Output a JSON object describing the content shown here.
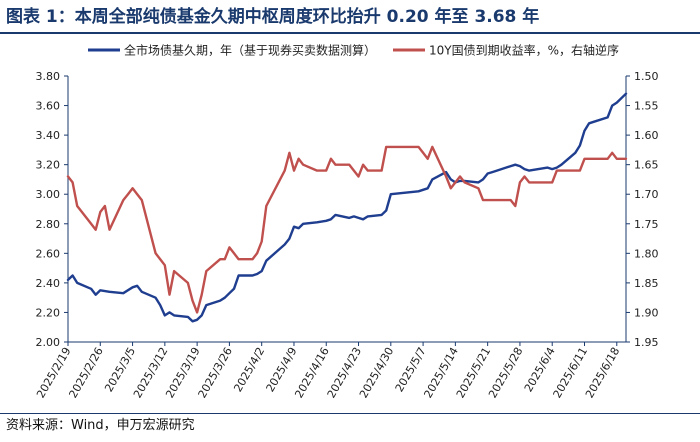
{
  "title": "图表 1：本周全部纯债基金久期中枢周度环比抬升 0.20 年至 3.68 年",
  "source": "资料来源：Wind，申万宏源研究",
  "colors": {
    "series1": "#1f3e8f",
    "series2": "#c0504d",
    "axis": "#1a3a6e"
  },
  "chart_data": {
    "type": "line",
    "legend_position": "top",
    "grid": false,
    "x_ticks": [
      "2025/2/19",
      "2025/2/26",
      "2025/3/5",
      "2025/3/12",
      "2025/3/19",
      "2025/3/26",
      "2025/4/2",
      "2025/4/9",
      "2025/4/16",
      "2025/4/23",
      "2025/4/30",
      "2025/5/7",
      "2025/5/14",
      "2025/5/21",
      "2025/5/28",
      "2025/6/4",
      "2025/6/11",
      "2025/6/18"
    ],
    "xlim": [
      "2025/2/19",
      "2025/6/20"
    ],
    "left_axis": {
      "ylim": [
        2.0,
        3.8
      ],
      "ticks": [
        "2.00",
        "2.20",
        "2.40",
        "2.60",
        "2.80",
        "3.00",
        "3.20",
        "3.40",
        "3.60",
        "3.80"
      ]
    },
    "right_axis": {
      "ylim": [
        1.5,
        1.95
      ],
      "reversed": true,
      "ticks": [
        "1.50",
        "1.55",
        "1.60",
        "1.65",
        "1.70",
        "1.75",
        "1.80",
        "1.85",
        "1.90",
        "1.95"
      ]
    },
    "series": [
      {
        "name": "全市场债基久期，年（基于现券买卖数据测算）",
        "axis": "left",
        "color": "#1f3e8f",
        "points": [
          [
            "2025/2/19",
            2.42
          ],
          [
            "2025/2/20",
            2.45
          ],
          [
            "2025/2/21",
            2.4
          ],
          [
            "2025/2/24",
            2.36
          ],
          [
            "2025/2/25",
            2.32
          ],
          [
            "2025/2/26",
            2.35
          ],
          [
            "2025/2/28",
            2.34
          ],
          [
            "2025/3/3",
            2.33
          ],
          [
            "2025/3/5",
            2.37
          ],
          [
            "2025/3/6",
            2.38
          ],
          [
            "2025/3/7",
            2.34
          ],
          [
            "2025/3/10",
            2.3
          ],
          [
            "2025/3/11",
            2.25
          ],
          [
            "2025/3/12",
            2.18
          ],
          [
            "2025/3/13",
            2.2
          ],
          [
            "2025/3/14",
            2.18
          ],
          [
            "2025/3/17",
            2.17
          ],
          [
            "2025/3/18",
            2.14
          ],
          [
            "2025/3/19",
            2.15
          ],
          [
            "2025/3/20",
            2.18
          ],
          [
            "2025/3/21",
            2.25
          ],
          [
            "2025/3/24",
            2.28
          ],
          [
            "2025/3/25",
            2.3
          ],
          [
            "2025/3/26",
            2.33
          ],
          [
            "2025/3/27",
            2.36
          ],
          [
            "2025/3/28",
            2.45
          ],
          [
            "2025/3/31",
            2.45
          ],
          [
            "2025/4/1",
            2.46
          ],
          [
            "2025/4/2",
            2.48
          ],
          [
            "2025/4/3",
            2.55
          ],
          [
            "2025/4/7",
            2.66
          ],
          [
            "2025/4/8",
            2.7
          ],
          [
            "2025/4/9",
            2.78
          ],
          [
            "2025/4/10",
            2.77
          ],
          [
            "2025/4/11",
            2.8
          ],
          [
            "2025/4/14",
            2.81
          ],
          [
            "2025/4/16",
            2.82
          ],
          [
            "2025/4/17",
            2.83
          ],
          [
            "2025/4/18",
            2.86
          ],
          [
            "2025/4/21",
            2.84
          ],
          [
            "2025/4/22",
            2.85
          ],
          [
            "2025/4/23",
            2.84
          ],
          [
            "2025/4/24",
            2.83
          ],
          [
            "2025/4/25",
            2.85
          ],
          [
            "2025/4/28",
            2.86
          ],
          [
            "2025/4/29",
            2.89
          ],
          [
            "2025/4/30",
            3.0
          ],
          [
            "2025/5/6",
            3.02
          ],
          [
            "2025/5/7",
            3.03
          ],
          [
            "2025/5/8",
            3.04
          ],
          [
            "2025/5/9",
            3.1
          ],
          [
            "2025/5/12",
            3.15
          ],
          [
            "2025/5/13",
            3.1
          ],
          [
            "2025/5/14",
            3.08
          ],
          [
            "2025/5/15",
            3.09
          ],
          [
            "2025/5/16",
            3.09
          ],
          [
            "2025/5/19",
            3.08
          ],
          [
            "2025/5/20",
            3.1
          ],
          [
            "2025/5/21",
            3.14
          ],
          [
            "2025/5/22",
            3.15
          ],
          [
            "2025/5/23",
            3.16
          ],
          [
            "2025/5/26",
            3.19
          ],
          [
            "2025/5/27",
            3.2
          ],
          [
            "2025/5/28",
            3.19
          ],
          [
            "2025/5/29",
            3.17
          ],
          [
            "2025/5/30",
            3.16
          ],
          [
            "2025/6/3",
            3.18
          ],
          [
            "2025/6/4",
            3.17
          ],
          [
            "2025/6/5",
            3.18
          ],
          [
            "2025/6/6",
            3.2
          ],
          [
            "2025/6/9",
            3.28
          ],
          [
            "2025/6/10",
            3.33
          ],
          [
            "2025/6/11",
            3.43
          ],
          [
            "2025/6/12",
            3.48
          ],
          [
            "2025/6/13",
            3.49
          ],
          [
            "2025/6/16",
            3.52
          ],
          [
            "2025/6/17",
            3.6
          ],
          [
            "2025/6/18",
            3.62
          ],
          [
            "2025/6/20",
            3.68
          ]
        ]
      },
      {
        "name": "10Y国债到期收益率，%，右轴逆序",
        "axis": "right",
        "color": "#c0504d",
        "points": [
          [
            "2025/2/19",
            1.67
          ],
          [
            "2025/2/20",
            1.68
          ],
          [
            "2025/2/21",
            1.72
          ],
          [
            "2025/2/24",
            1.75
          ],
          [
            "2025/2/25",
            1.76
          ],
          [
            "2025/2/26",
            1.73
          ],
          [
            "2025/2/27",
            1.72
          ],
          [
            "2025/2/28",
            1.76
          ],
          [
            "2025/3/3",
            1.71
          ],
          [
            "2025/3/4",
            1.7
          ],
          [
            "2025/3/5",
            1.69
          ],
          [
            "2025/3/6",
            1.7
          ],
          [
            "2025/3/7",
            1.71
          ],
          [
            "2025/3/10",
            1.8
          ],
          [
            "2025/3/11",
            1.81
          ],
          [
            "2025/3/12",
            1.82
          ],
          [
            "2025/3/13",
            1.87
          ],
          [
            "2025/3/14",
            1.83
          ],
          [
            "2025/3/17",
            1.85
          ],
          [
            "2025/3/18",
            1.88
          ],
          [
            "2025/3/19",
            1.9
          ],
          [
            "2025/3/20",
            1.87
          ],
          [
            "2025/3/21",
            1.83
          ],
          [
            "2025/3/24",
            1.81
          ],
          [
            "2025/3/25",
            1.81
          ],
          [
            "2025/3/26",
            1.79
          ],
          [
            "2025/3/27",
            1.8
          ],
          [
            "2025/3/28",
            1.81
          ],
          [
            "2025/3/31",
            1.81
          ],
          [
            "2025/4/1",
            1.8
          ],
          [
            "2025/4/2",
            1.78
          ],
          [
            "2025/4/3",
            1.72
          ],
          [
            "2025/4/7",
            1.66
          ],
          [
            "2025/4/8",
            1.63
          ],
          [
            "2025/4/9",
            1.66
          ],
          [
            "2025/4/10",
            1.64
          ],
          [
            "2025/4/11",
            1.65
          ],
          [
            "2025/4/14",
            1.66
          ],
          [
            "2025/4/16",
            1.66
          ],
          [
            "2025/4/17",
            1.64
          ],
          [
            "2025/4/18",
            1.65
          ],
          [
            "2025/4/21",
            1.65
          ],
          [
            "2025/4/22",
            1.66
          ],
          [
            "2025/4/23",
            1.67
          ],
          [
            "2025/4/24",
            1.65
          ],
          [
            "2025/4/25",
            1.66
          ],
          [
            "2025/4/28",
            1.66
          ],
          [
            "2025/4/29",
            1.62
          ],
          [
            "2025/4/30",
            1.62
          ],
          [
            "2025/5/6",
            1.62
          ],
          [
            "2025/5/7",
            1.63
          ],
          [
            "2025/5/8",
            1.64
          ],
          [
            "2025/5/9",
            1.62
          ],
          [
            "2025/5/12",
            1.67
          ],
          [
            "2025/5/13",
            1.69
          ],
          [
            "2025/5/14",
            1.68
          ],
          [
            "2025/5/15",
            1.67
          ],
          [
            "2025/5/16",
            1.68
          ],
          [
            "2025/5/19",
            1.69
          ],
          [
            "2025/5/20",
            1.71
          ],
          [
            "2025/5/21",
            1.71
          ],
          [
            "2025/5/22",
            1.71
          ],
          [
            "2025/5/23",
            1.71
          ],
          [
            "2025/5/26",
            1.71
          ],
          [
            "2025/5/27",
            1.72
          ],
          [
            "2025/5/28",
            1.68
          ],
          [
            "2025/5/29",
            1.67
          ],
          [
            "2025/5/30",
            1.68
          ],
          [
            "2025/6/3",
            1.68
          ],
          [
            "2025/6/4",
            1.68
          ],
          [
            "2025/6/5",
            1.66
          ],
          [
            "2025/6/6",
            1.66
          ],
          [
            "2025/6/9",
            1.66
          ],
          [
            "2025/6/10",
            1.66
          ],
          [
            "2025/6/11",
            1.64
          ],
          [
            "2025/6/12",
            1.64
          ],
          [
            "2025/6/13",
            1.64
          ],
          [
            "2025/6/16",
            1.64
          ],
          [
            "2025/6/17",
            1.63
          ],
          [
            "2025/6/18",
            1.64
          ],
          [
            "2025/6/19",
            1.64
          ],
          [
            "2025/6/20",
            1.64
          ]
        ]
      }
    ]
  }
}
